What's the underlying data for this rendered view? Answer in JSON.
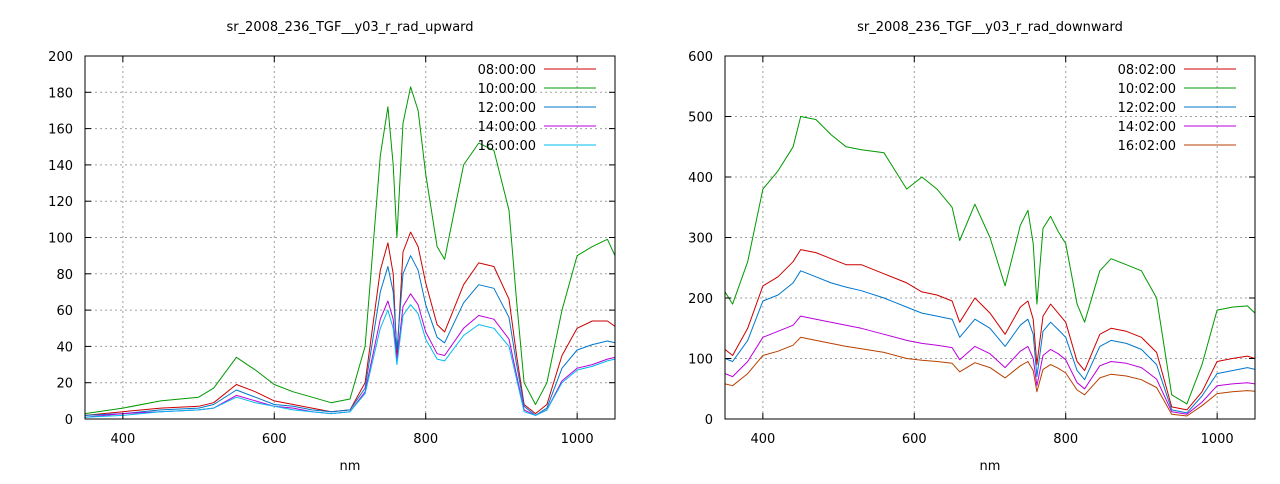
{
  "chart_data": [
    {
      "type": "line",
      "title": "sr_2008_236_TGF__y03_r_rad_upward",
      "xlabel": "nm",
      "ylabel": "",
      "xlim": [
        350,
        1050
      ],
      "ylim": [
        0,
        200
      ],
      "xticks": [
        400,
        600,
        800,
        1000
      ],
      "yticks": [
        0,
        20,
        40,
        60,
        80,
        100,
        120,
        140,
        160,
        180,
        200
      ],
      "grid": true,
      "legend_position": "top-right",
      "x": [
        350,
        400,
        450,
        500,
        520,
        550,
        575,
        600,
        625,
        650,
        675,
        700,
        720,
        740,
        750,
        757,
        762,
        770,
        780,
        790,
        800,
        815,
        825,
        850,
        870,
        890,
        910,
        920,
        930,
        945,
        960,
        980,
        1000,
        1020,
        1040,
        1050
      ],
      "series": [
        {
          "name": "08:00:00",
          "color": "#cc0000",
          "values": [
            2,
            4,
            6,
            7,
            9,
            19,
            15,
            10,
            8,
            6,
            4,
            5,
            20,
            82,
            97,
            80,
            33,
            92,
            103,
            95,
            75,
            52,
            48,
            74,
            86,
            84,
            66,
            35,
            8,
            3,
            8,
            35,
            50,
            54,
            54,
            51
          ]
        },
        {
          "name": "10:00:00",
          "color": "#009900",
          "values": [
            3,
            6,
            10,
            12,
            17,
            34,
            27,
            19,
            15,
            12,
            9,
            11,
            40,
            145,
            172,
            140,
            100,
            163,
            183,
            170,
            135,
            95,
            88,
            140,
            152,
            148,
            115,
            65,
            20,
            8,
            20,
            60,
            90,
            95,
            99,
            90
          ]
        },
        {
          "name": "12:00:00",
          "color": "#0077cc",
          "values": [
            2,
            3,
            5,
            6,
            8,
            16,
            12,
            8,
            7,
            5,
            4,
            5,
            17,
            70,
            84,
            70,
            38,
            80,
            90,
            82,
            63,
            45,
            42,
            64,
            74,
            72,
            56,
            30,
            7,
            2,
            6,
            28,
            38,
            41,
            43,
            42
          ]
        },
        {
          "name": "14:00:00",
          "color": "#bb00dd",
          "values": [
            1,
            3,
            4,
            5,
            6,
            13,
            10,
            7,
            6,
            4,
            3,
            4,
            15,
            55,
            65,
            55,
            32,
            62,
            69,
            63,
            48,
            36,
            35,
            50,
            57,
            55,
            44,
            24,
            5,
            2,
            5,
            21,
            28,
            30,
            33,
            34
          ]
        },
        {
          "name": "16:00:00",
          "color": "#00bbee",
          "values": [
            1,
            2,
            4,
            5,
            6,
            12,
            9,
            7,
            5,
            4,
            3,
            4,
            14,
            50,
            60,
            50,
            30,
            57,
            63,
            58,
            44,
            33,
            32,
            46,
            52,
            50,
            40,
            22,
            4,
            2,
            5,
            20,
            27,
            29,
            32,
            33
          ]
        }
      ]
    },
    {
      "type": "line",
      "title": "sr_2008_236_TGF__y03_r_rad_downward",
      "xlabel": "nm",
      "ylabel": "",
      "xlim": [
        350,
        1050
      ],
      "ylim": [
        0,
        600
      ],
      "xticks": [
        400,
        600,
        800,
        1000
      ],
      "yticks": [
        0,
        100,
        200,
        300,
        400,
        500,
        600
      ],
      "grid": true,
      "legend_position": "top-right",
      "x": [
        350,
        360,
        380,
        400,
        420,
        440,
        450,
        470,
        490,
        510,
        530,
        560,
        590,
        610,
        630,
        650,
        660,
        680,
        700,
        720,
        740,
        750,
        757,
        762,
        770,
        780,
        790,
        800,
        815,
        825,
        845,
        860,
        880,
        900,
        920,
        940,
        960,
        980,
        1000,
        1020,
        1040,
        1050
      ],
      "series": [
        {
          "name": "08:02:00",
          "color": "#cc0000",
          "values": [
            115,
            105,
            150,
            220,
            235,
            260,
            280,
            275,
            265,
            255,
            255,
            240,
            225,
            210,
            205,
            195,
            160,
            200,
            175,
            140,
            185,
            195,
            165,
            90,
            170,
            190,
            175,
            160,
            95,
            80,
            140,
            150,
            145,
            135,
            110,
            20,
            15,
            45,
            95,
            100,
            104,
            100
          ]
        },
        {
          "name": "10:02:00",
          "color": "#009900",
          "values": [
            210,
            190,
            260,
            380,
            410,
            450,
            500,
            495,
            470,
            450,
            445,
            440,
            380,
            400,
            380,
            350,
            295,
            355,
            300,
            220,
            320,
            345,
            290,
            190,
            315,
            335,
            310,
            290,
            190,
            160,
            245,
            265,
            255,
            245,
            200,
            40,
            25,
            90,
            180,
            185,
            187,
            175
          ]
        },
        {
          "name": "12:02:00",
          "color": "#0077cc",
          "values": [
            100,
            95,
            130,
            195,
            205,
            225,
            245,
            235,
            225,
            218,
            212,
            200,
            185,
            175,
            170,
            165,
            135,
            165,
            150,
            120,
            155,
            165,
            140,
            70,
            145,
            160,
            148,
            135,
            80,
            65,
            120,
            130,
            125,
            115,
            90,
            15,
            10,
            38,
            75,
            80,
            85,
            82
          ]
        },
        {
          "name": "14:02:00",
          "color": "#bb00dd",
          "values": [
            75,
            70,
            95,
            135,
            145,
            155,
            170,
            165,
            160,
            155,
            150,
            140,
            130,
            125,
            122,
            118,
            98,
            120,
            108,
            85,
            112,
            120,
            100,
            55,
            105,
            115,
            108,
            98,
            60,
            50,
            88,
            95,
            92,
            85,
            66,
            12,
            8,
            28,
            55,
            58,
            60,
            58
          ]
        },
        {
          "name": "16:02:00",
          "color": "#b84000",
          "values": [
            58,
            55,
            75,
            105,
            112,
            122,
            135,
            130,
            125,
            120,
            116,
            110,
            100,
            97,
            95,
            92,
            78,
            93,
            85,
            68,
            88,
            95,
            80,
            45,
            82,
            90,
            84,
            76,
            48,
            40,
            68,
            74,
            71,
            65,
            52,
            8,
            5,
            22,
            42,
            45,
            47,
            46
          ]
        }
      ]
    }
  ]
}
